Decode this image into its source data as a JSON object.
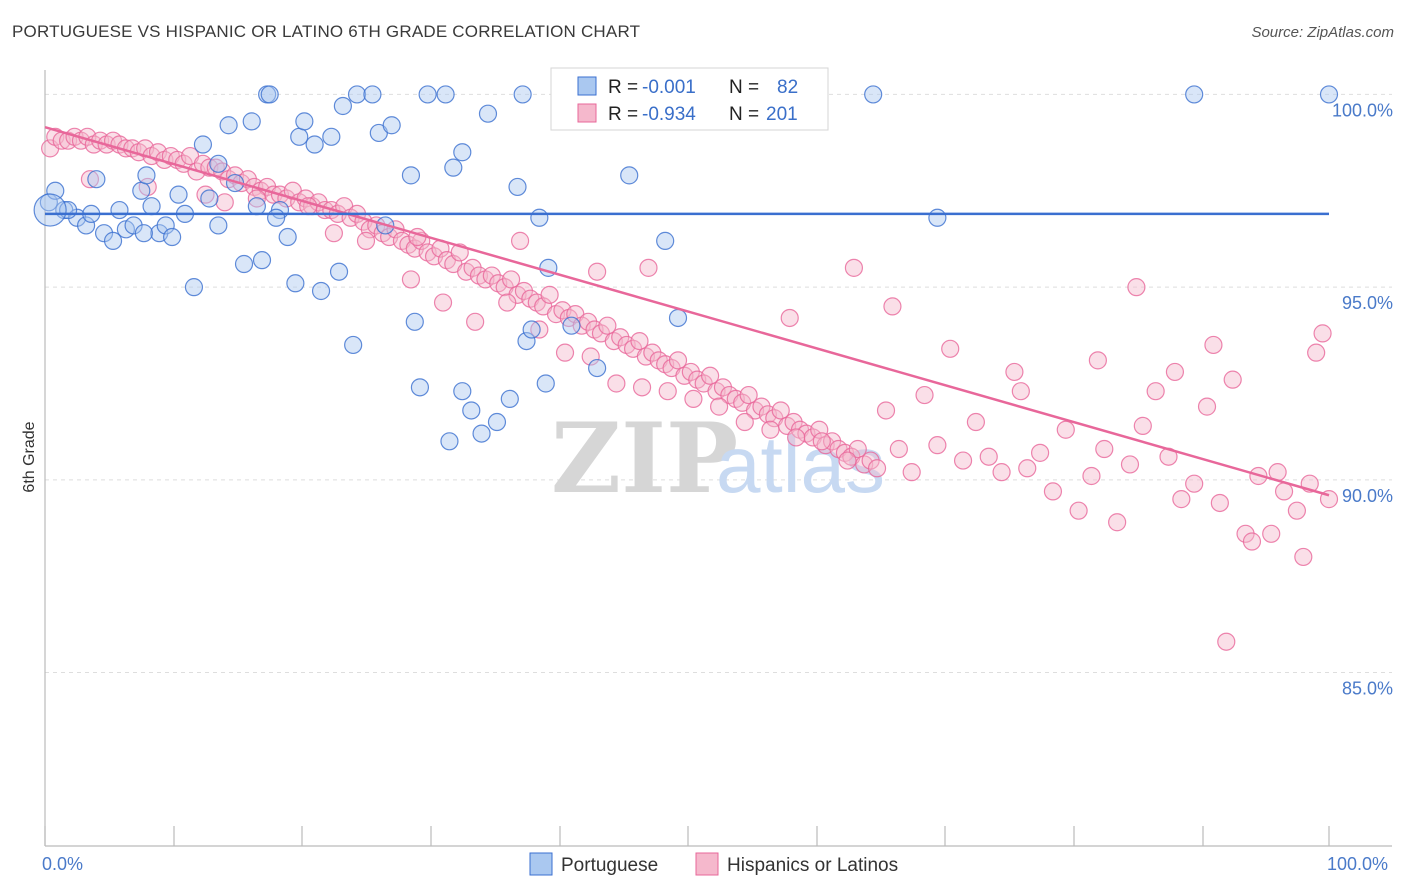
{
  "header": {
    "title": "PORTUGUESE VS HISPANIC OR LATINO 6TH GRADE CORRELATION CHART",
    "source": "Source: ZipAtlas.com"
  },
  "watermark": {
    "zip": "ZIP",
    "atlas": "atlas"
  },
  "colors": {
    "blue": "#3a6fd0",
    "blue_fill": "#aac8f0",
    "pink": "#e8679a",
    "pink_fill": "#f5b8cc",
    "tick": "#4a7ac9"
  },
  "legend": {
    "rows": [
      {
        "r_label": "R =",
        "r_value": "-0.001",
        "n_label": "N =",
        "n_value": "82"
      },
      {
        "r_label": "R =",
        "r_value": "-0.934",
        "n_label": "N =",
        "n_value": "201"
      }
    ]
  },
  "chart_data": {
    "type": "scatter",
    "title": "PORTUGUESE VS HISPANIC OR LATINO 6TH GRADE CORRELATION CHART",
    "xlabel": "",
    "ylabel": "6th Grade",
    "xlim": [
      0,
      100
    ],
    "ylim": [
      80.5,
      100.4
    ],
    "x_tick_labels": [
      "0.0%",
      "100.0%"
    ],
    "y_ticks": [
      85,
      90,
      95,
      100
    ],
    "y_tick_labels": [
      "85.0%",
      "90.0%",
      "95.0%",
      "100.0%"
    ],
    "legend": [
      "Portuguese",
      "Hispanics or Latinos"
    ],
    "series": [
      {
        "name": "Portuguese",
        "color": "#3a6fd0",
        "R": -0.001,
        "N": 82,
        "trend": {
          "x": [
            0,
            100
          ],
          "y": [
            96.9,
            96.9
          ]
        },
        "points": [
          [
            0.3,
            97.2
          ],
          [
            0.8,
            97.5
          ],
          [
            1.5,
            97.0
          ],
          [
            2.5,
            96.8
          ],
          [
            3.2,
            96.6
          ],
          [
            4.0,
            97.8
          ],
          [
            4.6,
            96.4
          ],
          [
            5.3,
            96.2
          ],
          [
            5.8,
            97.0
          ],
          [
            6.3,
            96.5
          ],
          [
            6.9,
            96.6
          ],
          [
            7.5,
            97.5
          ],
          [
            7.9,
            97.9
          ],
          [
            8.3,
            97.1
          ],
          [
            8.9,
            96.4
          ],
          [
            9.4,
            96.6
          ],
          [
            9.9,
            96.3
          ],
          [
            10.4,
            97.4
          ],
          [
            10.9,
            96.9
          ],
          [
            11.6,
            95.0
          ],
          [
            12.3,
            98.7
          ],
          [
            12.8,
            97.3
          ],
          [
            13.5,
            98.2
          ],
          [
            13.5,
            96.6
          ],
          [
            14.3,
            99.2
          ],
          [
            14.8,
            97.7
          ],
          [
            15.5,
            95.6
          ],
          [
            16.1,
            99.3
          ],
          [
            16.5,
            97.1
          ],
          [
            16.9,
            95.7
          ],
          [
            17.3,
            100.0
          ],
          [
            17.5,
            100.0
          ],
          [
            18.3,
            97.0
          ],
          [
            18.9,
            96.3
          ],
          [
            19.5,
            95.1
          ],
          [
            19.8,
            98.9
          ],
          [
            20.2,
            99.3
          ],
          [
            21.0,
            98.7
          ],
          [
            21.5,
            94.9
          ],
          [
            22.3,
            98.9
          ],
          [
            22.9,
            95.4
          ],
          [
            23.2,
            99.7
          ],
          [
            24.0,
            93.5
          ],
          [
            24.3,
            100.0
          ],
          [
            25.5,
            100.0
          ],
          [
            26.0,
            99.0
          ],
          [
            27.0,
            99.2
          ],
          [
            28.5,
            97.9
          ],
          [
            28.8,
            94.1
          ],
          [
            29.2,
            92.4
          ],
          [
            29.8,
            100.0
          ],
          [
            31.2,
            100.0
          ],
          [
            31.8,
            98.1
          ],
          [
            31.5,
            91.0
          ],
          [
            32.5,
            98.5
          ],
          [
            32.5,
            92.3
          ],
          [
            33.2,
            91.8
          ],
          [
            34.0,
            91.2
          ],
          [
            34.5,
            99.5
          ],
          [
            35.2,
            91.5
          ],
          [
            36.2,
            92.1
          ],
          [
            37.2,
            100.0
          ],
          [
            37.5,
            93.6
          ],
          [
            37.9,
            93.9
          ],
          [
            38.5,
            96.8
          ],
          [
            39.0,
            92.5
          ],
          [
            39.2,
            95.5
          ],
          [
            41.0,
            94.0
          ],
          [
            43.0,
            92.9
          ],
          [
            48.3,
            96.2
          ],
          [
            49.3,
            94.2
          ],
          [
            64.5,
            100.0
          ],
          [
            69.5,
            96.8
          ],
          [
            89.5,
            100.0
          ],
          [
            100.0,
            100.0
          ],
          [
            1.8,
            97.0
          ],
          [
            3.6,
            96.9
          ],
          [
            7.7,
            96.4
          ],
          [
            18.0,
            96.8
          ],
          [
            26.5,
            96.6
          ],
          [
            36.8,
            97.6
          ],
          [
            45.5,
            97.9
          ]
        ]
      },
      {
        "name": "Hispanics or Latinos",
        "color": "#e8679a",
        "R": -0.934,
        "N": 201,
        "trend": {
          "x": [
            0,
            100
          ],
          "y": [
            99.15,
            89.6
          ]
        },
        "points": [
          [
            0.4,
            98.6
          ],
          [
            0.8,
            98.9
          ],
          [
            1.3,
            98.8
          ],
          [
            1.8,
            98.8
          ],
          [
            2.3,
            98.9
          ],
          [
            2.8,
            98.8
          ],
          [
            3.3,
            98.9
          ],
          [
            3.8,
            98.7
          ],
          [
            4.3,
            98.8
          ],
          [
            4.8,
            98.7
          ],
          [
            5.3,
            98.8
          ],
          [
            5.8,
            98.7
          ],
          [
            6.3,
            98.6
          ],
          [
            6.8,
            98.6
          ],
          [
            7.3,
            98.5
          ],
          [
            7.8,
            98.6
          ],
          [
            8.3,
            98.4
          ],
          [
            8.8,
            98.5
          ],
          [
            9.3,
            98.3
          ],
          [
            9.8,
            98.4
          ],
          [
            10.3,
            98.3
          ],
          [
            10.8,
            98.2
          ],
          [
            11.3,
            98.4
          ],
          [
            11.8,
            98.0
          ],
          [
            12.3,
            98.2
          ],
          [
            12.8,
            98.1
          ],
          [
            13.3,
            98.1
          ],
          [
            13.8,
            98.0
          ],
          [
            14.3,
            97.8
          ],
          [
            14.8,
            97.9
          ],
          [
            15.3,
            97.7
          ],
          [
            15.8,
            97.8
          ],
          [
            16.3,
            97.6
          ],
          [
            16.8,
            97.5
          ],
          [
            17.3,
            97.6
          ],
          [
            17.8,
            97.4
          ],
          [
            18.3,
            97.4
          ],
          [
            18.8,
            97.3
          ],
          [
            19.3,
            97.5
          ],
          [
            19.8,
            97.2
          ],
          [
            20.3,
            97.3
          ],
          [
            20.8,
            97.1
          ],
          [
            21.3,
            97.2
          ],
          [
            21.8,
            97.0
          ],
          [
            22.3,
            97.0
          ],
          [
            22.8,
            96.9
          ],
          [
            23.3,
            97.1
          ],
          [
            23.8,
            96.8
          ],
          [
            24.3,
            96.9
          ],
          [
            24.8,
            96.7
          ],
          [
            25.3,
            96.5
          ],
          [
            25.8,
            96.6
          ],
          [
            26.3,
            96.4
          ],
          [
            26.8,
            96.3
          ],
          [
            27.3,
            96.5
          ],
          [
            27.8,
            96.2
          ],
          [
            28.3,
            96.1
          ],
          [
            28.8,
            96.0
          ],
          [
            29.3,
            96.2
          ],
          [
            29.8,
            95.9
          ],
          [
            30.3,
            95.8
          ],
          [
            30.8,
            96.0
          ],
          [
            31.3,
            95.7
          ],
          [
            31.8,
            95.6
          ],
          [
            32.3,
            95.9
          ],
          [
            32.8,
            95.4
          ],
          [
            33.3,
            95.5
          ],
          [
            33.8,
            95.3
          ],
          [
            34.3,
            95.2
          ],
          [
            34.8,
            95.3
          ],
          [
            35.3,
            95.1
          ],
          [
            35.8,
            95.0
          ],
          [
            36.3,
            95.2
          ],
          [
            36.8,
            94.8
          ],
          [
            37.3,
            94.9
          ],
          [
            37.8,
            94.7
          ],
          [
            38.3,
            94.6
          ],
          [
            38.8,
            94.5
          ],
          [
            39.3,
            94.8
          ],
          [
            39.8,
            94.3
          ],
          [
            40.3,
            94.4
          ],
          [
            40.8,
            94.2
          ],
          [
            41.3,
            94.3
          ],
          [
            41.8,
            94.0
          ],
          [
            42.3,
            94.1
          ],
          [
            42.8,
            93.9
          ],
          [
            43.3,
            93.8
          ],
          [
            43.8,
            94.0
          ],
          [
            44.3,
            93.6
          ],
          [
            44.8,
            93.7
          ],
          [
            45.3,
            93.5
          ],
          [
            45.8,
            93.4
          ],
          [
            46.3,
            93.6
          ],
          [
            46.8,
            93.2
          ],
          [
            47.3,
            93.3
          ],
          [
            47.8,
            93.1
          ],
          [
            48.3,
            93.0
          ],
          [
            48.8,
            92.9
          ],
          [
            49.3,
            93.1
          ],
          [
            49.8,
            92.7
          ],
          [
            50.3,
            92.8
          ],
          [
            50.8,
            92.6
          ],
          [
            51.3,
            92.5
          ],
          [
            51.8,
            92.7
          ],
          [
            52.3,
            92.3
          ],
          [
            52.8,
            92.4
          ],
          [
            53.3,
            92.2
          ],
          [
            53.8,
            92.1
          ],
          [
            54.3,
            92.0
          ],
          [
            54.8,
            92.2
          ],
          [
            55.3,
            91.8
          ],
          [
            55.8,
            91.9
          ],
          [
            56.3,
            91.7
          ],
          [
            56.8,
            91.6
          ],
          [
            57.3,
            91.8
          ],
          [
            57.8,
            91.4
          ],
          [
            58.3,
            91.5
          ],
          [
            58.8,
            91.3
          ],
          [
            59.3,
            91.2
          ],
          [
            59.8,
            91.1
          ],
          [
            60.3,
            91.3
          ],
          [
            60.8,
            90.9
          ],
          [
            61.3,
            91.0
          ],
          [
            61.8,
            90.8
          ],
          [
            62.3,
            90.7
          ],
          [
            62.8,
            90.6
          ],
          [
            63.3,
            90.8
          ],
          [
            63.8,
            90.4
          ],
          [
            64.3,
            90.5
          ],
          [
            64.8,
            90.3
          ],
          [
            3.5,
            97.8
          ],
          [
            8.0,
            97.6
          ],
          [
            12.5,
            97.4
          ],
          [
            16.5,
            97.3
          ],
          [
            20.5,
            97.1
          ],
          [
            25.0,
            96.2
          ],
          [
            28.5,
            95.2
          ],
          [
            31.0,
            94.6
          ],
          [
            33.5,
            94.1
          ],
          [
            36.0,
            94.6
          ],
          [
            38.5,
            93.9
          ],
          [
            40.5,
            93.3
          ],
          [
            42.5,
            93.2
          ],
          [
            44.5,
            92.5
          ],
          [
            46.5,
            92.4
          ],
          [
            48.5,
            92.3
          ],
          [
            50.5,
            92.1
          ],
          [
            52.5,
            91.9
          ],
          [
            54.5,
            91.5
          ],
          [
            56.5,
            91.3
          ],
          [
            58.5,
            91.1
          ],
          [
            60.5,
            91.0
          ],
          [
            62.5,
            90.5
          ],
          [
            65.5,
            91.8
          ],
          [
            66.5,
            90.8
          ],
          [
            67.5,
            90.2
          ],
          [
            68.5,
            92.2
          ],
          [
            69.5,
            90.9
          ],
          [
            70.5,
            93.4
          ],
          [
            71.5,
            90.5
          ],
          [
            72.5,
            91.5
          ],
          [
            73.5,
            90.6
          ],
          [
            74.5,
            90.2
          ],
          [
            75.5,
            92.8
          ],
          [
            76.5,
            90.3
          ],
          [
            77.5,
            90.7
          ],
          [
            78.5,
            89.7
          ],
          [
            79.5,
            91.3
          ],
          [
            80.5,
            89.2
          ],
          [
            81.5,
            90.1
          ],
          [
            82.5,
            90.8
          ],
          [
            83.5,
            88.9
          ],
          [
            84.5,
            90.4
          ],
          [
            85.5,
            91.4
          ],
          [
            86.5,
            92.3
          ],
          [
            87.5,
            90.6
          ],
          [
            88.5,
            89.5
          ],
          [
            89.5,
            89.9
          ],
          [
            90.5,
            91.9
          ],
          [
            91.5,
            89.4
          ],
          [
            92.5,
            92.6
          ],
          [
            93.5,
            88.6
          ],
          [
            94.5,
            90.1
          ],
          [
            95.5,
            88.6
          ],
          [
            96.5,
            89.7
          ],
          [
            97.5,
            89.2
          ],
          [
            98.5,
            89.9
          ],
          [
            99.5,
            93.8
          ],
          [
            100.0,
            89.5
          ],
          [
            85.0,
            95.0
          ],
          [
            91.0,
            93.5
          ],
          [
            82.0,
            93.1
          ],
          [
            99.0,
            93.3
          ],
          [
            96.0,
            90.2
          ],
          [
            94.0,
            88.4
          ],
          [
            92.0,
            85.8
          ],
          [
            98.0,
            88.0
          ],
          [
            88.0,
            92.8
          ],
          [
            76.0,
            92.3
          ],
          [
            66.0,
            94.5
          ],
          [
            63.0,
            95.5
          ],
          [
            58.0,
            94.2
          ],
          [
            47.0,
            95.5
          ],
          [
            43.0,
            95.4
          ],
          [
            37.0,
            96.2
          ],
          [
            29.0,
            96.3
          ],
          [
            22.5,
            96.4
          ],
          [
            14.0,
            97.2
          ]
        ]
      }
    ]
  },
  "bottom_legend": {
    "items": [
      "Portuguese",
      "Hispanics or Latinos"
    ]
  }
}
